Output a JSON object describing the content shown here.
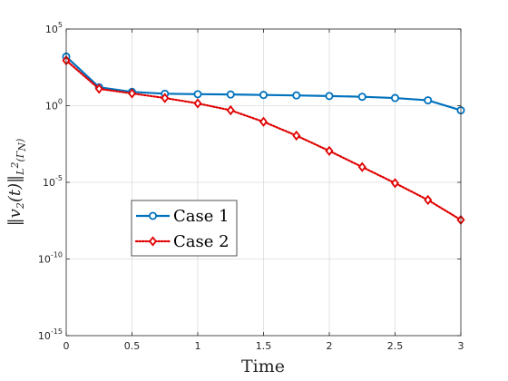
{
  "chart_data": {
    "type": "line",
    "xlabel": "Time",
    "ylabel": "‖v2(t)‖ L2(ΓN)",
    "xlim": [
      0,
      3
    ],
    "ylim_log10": [
      -15,
      5
    ],
    "yscale": "log",
    "grid": true,
    "legend_placement": "center-left",
    "x_ticks": [
      "0",
      "0.5",
      "1",
      "1.5",
      "2",
      "2.5",
      "3"
    ],
    "x_tick_values": [
      0,
      0.5,
      1,
      1.5,
      2,
      2.5,
      3
    ],
    "y_ticks": [
      {
        "base": "10",
        "exp": "0"
      },
      {
        "base": "10",
        "exp": "-5"
      },
      {
        "base": "10",
        "exp": "-10"
      },
      {
        "base": "10",
        "exp": "-15"
      },
      {
        "base": "10",
        "exp": "5"
      }
    ],
    "y_tick_values_log10": [
      0,
      -5,
      -10,
      -15,
      5
    ],
    "x": [
      0,
      0.25,
      0.5,
      0.75,
      1.0,
      1.25,
      1.5,
      1.75,
      2.0,
      2.25,
      2.5,
      2.75,
      3.0
    ],
    "series": [
      {
        "name": "Case 1",
        "color": "#0072BD",
        "line": "solid",
        "marker": "circle",
        "log10_values": [
          3.2,
          1.2,
          0.9,
          0.78,
          0.75,
          0.73,
          0.7,
          0.67,
          0.63,
          0.58,
          0.5,
          0.35,
          -0.3
        ]
      },
      {
        "name": "Case 2",
        "color": "#E00000",
        "line": "dotted",
        "marker": "diamond",
        "log10_values": [
          2.95,
          1.1,
          0.8,
          0.5,
          0.15,
          -0.3,
          -1.05,
          -1.95,
          -2.95,
          -4.0,
          -5.05,
          -6.15,
          -7.45
        ]
      }
    ]
  },
  "chart_data_meta": {
    "legend_entries": [
      "Case 1",
      "Case 2"
    ]
  }
}
